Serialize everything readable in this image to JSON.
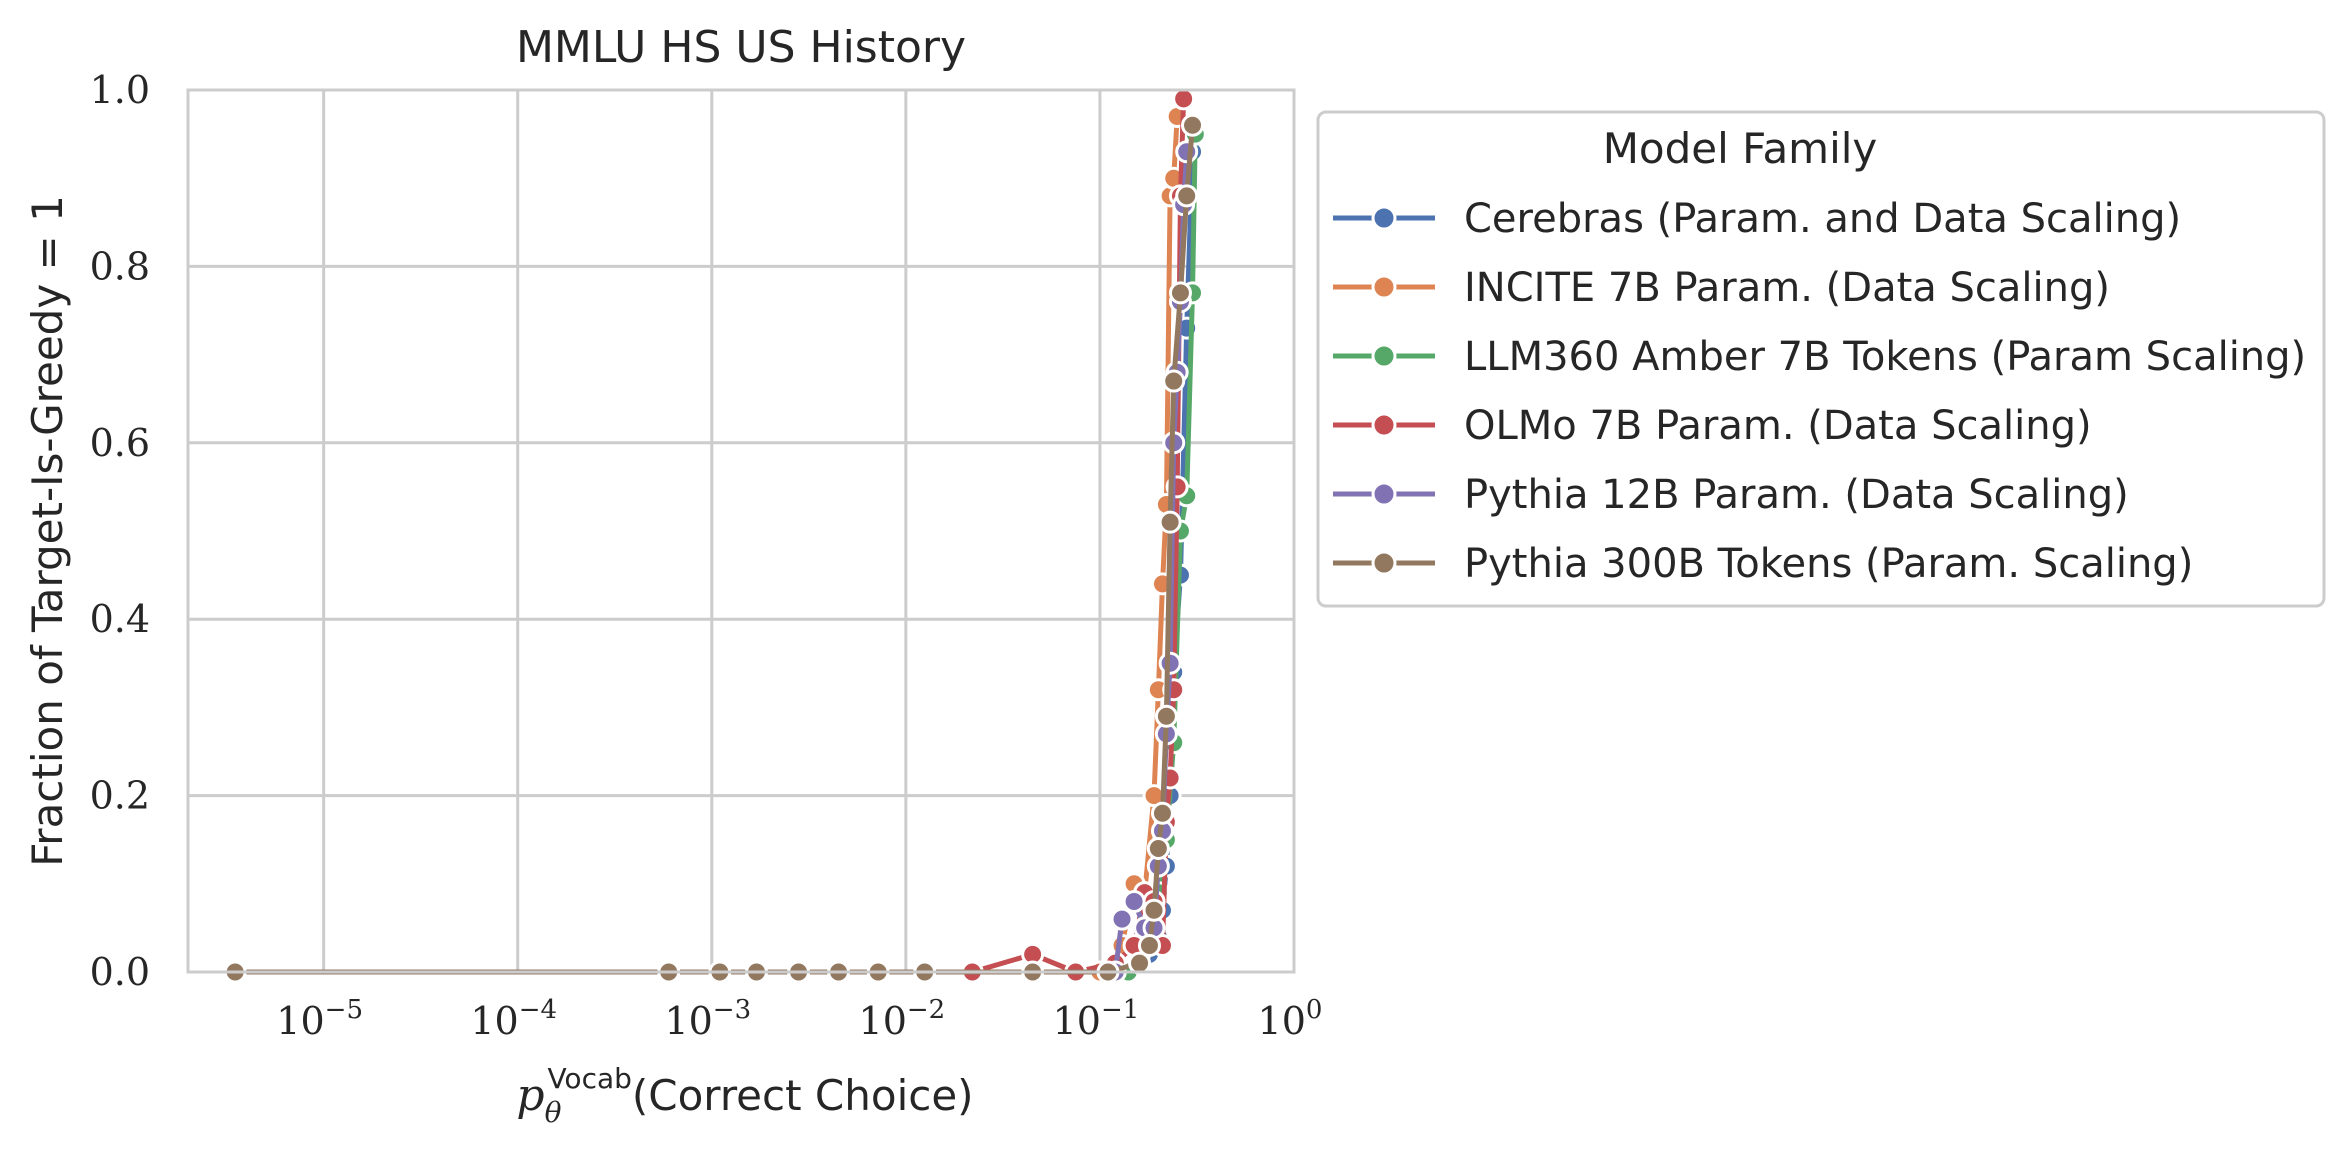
{
  "chart_data": {
    "type": "line",
    "title": "MMLU HS US History",
    "xlabel": "p_θ^Vocab(Correct Choice)",
    "xlabel_parts": {
      "base": "p",
      "sub": "θ",
      "sup": "Vocab",
      "rest": "(Correct Choice)"
    },
    "ylabel": "Fraction of Target-Is-Greedy = 1",
    "xscale": "log",
    "xlim": [
      2e-06,
      1
    ],
    "ylim": [
      0,
      1
    ],
    "x_ticks": [
      {
        "base": "10",
        "exp": "−5",
        "value": 1e-05
      },
      {
        "base": "10",
        "exp": "−4",
        "value": 0.0001
      },
      {
        "base": "10",
        "exp": "−3",
        "value": 0.001
      },
      {
        "base": "10",
        "exp": "−2",
        "value": 0.01
      },
      {
        "base": "10",
        "exp": "−1",
        "value": 0.1
      },
      {
        "base": "10",
        "exp": "0",
        "value": 1
      }
    ],
    "y_ticks": [
      "0.0",
      "0.2",
      "0.4",
      "0.6",
      "0.8",
      "1.0"
    ],
    "grid": true,
    "legend": {
      "title": "Model Family",
      "placement": "outside-right-top"
    },
    "series": [
      {
        "name": "Cerebras (Param. and Data Scaling)",
        "color": "#4c72b0",
        "x": [
          0.12,
          0.14,
          0.16,
          0.18,
          0.2,
          0.21,
          0.22,
          0.23,
          0.24,
          0.26,
          0.28,
          0.3
        ],
        "y": [
          0.0,
          0.0,
          0.01,
          0.02,
          0.04,
          0.07,
          0.12,
          0.2,
          0.34,
          0.45,
          0.73,
          0.93
        ]
      },
      {
        "name": "INCITE 7B Param. (Data Scaling)",
        "color": "#dd8452",
        "x": [
          0.1,
          0.13,
          0.15,
          0.17,
          0.19,
          0.2,
          0.21,
          0.22,
          0.23,
          0.24,
          0.25,
          0.27
        ],
        "y": [
          0.0,
          0.03,
          0.1,
          0.09,
          0.2,
          0.32,
          0.44,
          0.53,
          0.88,
          0.9,
          0.97,
          0.99
        ]
      },
      {
        "name": "LLM360 Amber 7B Tokens (Param Scaling)",
        "color": "#55a868",
        "x": [
          0.14,
          0.16,
          0.18,
          0.2,
          0.22,
          0.24,
          0.26,
          0.28,
          0.3,
          0.31
        ],
        "y": [
          0.0,
          0.02,
          0.04,
          0.09,
          0.15,
          0.26,
          0.5,
          0.54,
          0.77,
          0.95
        ]
      },
      {
        "name": "OLMo 7B Param. (Data Scaling)",
        "color": "#c44e52",
        "x": [
          0.022,
          0.045,
          0.075,
          0.12,
          0.15,
          0.17,
          0.19,
          0.21,
          0.22,
          0.23,
          0.24,
          0.25,
          0.26,
          0.27
        ],
        "y": [
          0.0,
          0.02,
          0.0,
          0.01,
          0.03,
          0.09,
          0.08,
          0.03,
          0.17,
          0.22,
          0.32,
          0.55,
          0.88,
          0.99
        ]
      },
      {
        "name": "Pythia 12B Param. (Data Scaling)",
        "color": "#8172b3",
        "x": [
          0.12,
          0.13,
          0.15,
          0.17,
          0.19,
          0.2,
          0.21,
          0.22,
          0.23,
          0.24,
          0.25,
          0.26,
          0.27,
          0.28
        ],
        "y": [
          0.0,
          0.06,
          0.08,
          0.05,
          0.05,
          0.12,
          0.16,
          0.27,
          0.35,
          0.6,
          0.68,
          0.76,
          0.87,
          0.93
        ]
      },
      {
        "name": "Pythia 300B Tokens (Param. Scaling)",
        "color": "#937860",
        "x": [
          3.5e-06,
          0.0006,
          0.0011,
          0.0017,
          0.0028,
          0.0045,
          0.0072,
          0.0125,
          0.045,
          0.11,
          0.16,
          0.18,
          0.19,
          0.2,
          0.21,
          0.22,
          0.23,
          0.24,
          0.26,
          0.28,
          0.3
        ],
        "y": [
          0.0,
          0.0,
          0.0,
          0.0,
          0.0,
          0.0,
          0.0,
          0.0,
          0.0,
          0.0,
          0.01,
          0.03,
          0.07,
          0.14,
          0.18,
          0.29,
          0.51,
          0.67,
          0.77,
          0.88,
          0.96
        ]
      }
    ]
  }
}
